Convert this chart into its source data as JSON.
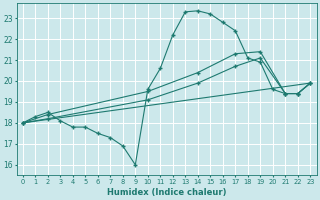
{
  "xlabel": "Humidex (Indice chaleur)",
  "bg_color": "#cce8eb",
  "grid_color": "#ffffff",
  "line_color": "#1e7a70",
  "xlim": [
    -0.5,
    23.5
  ],
  "ylim": [
    15.5,
    23.7
  ],
  "xticks": [
    0,
    1,
    2,
    3,
    4,
    5,
    6,
    7,
    8,
    9,
    10,
    11,
    12,
    13,
    14,
    15,
    16,
    17,
    18,
    19,
    20,
    21,
    22,
    23
  ],
  "yticks": [
    16,
    17,
    18,
    19,
    20,
    21,
    22,
    23
  ],
  "curve1_x": [
    0,
    1,
    2,
    3,
    4,
    5,
    6,
    7,
    8,
    9,
    10,
    11,
    12,
    13,
    14,
    15,
    16,
    17,
    18,
    19,
    20,
    21,
    22,
    23
  ],
  "curve1_y": [
    18.0,
    18.3,
    18.5,
    18.1,
    17.8,
    17.8,
    17.5,
    17.3,
    16.9,
    16.0,
    19.6,
    20.6,
    22.2,
    23.3,
    23.35,
    23.2,
    22.8,
    22.4,
    21.1,
    20.9,
    19.6,
    19.4,
    19.4,
    19.9
  ],
  "curve2_x": [
    0,
    2,
    10,
    14,
    17,
    19,
    21,
    22,
    23
  ],
  "curve2_y": [
    18.0,
    18.4,
    19.5,
    20.4,
    21.3,
    21.4,
    19.4,
    19.4,
    19.9
  ],
  "curve3_x": [
    0,
    2,
    10,
    14,
    17,
    19,
    21,
    22,
    23
  ],
  "curve3_y": [
    18.0,
    18.2,
    19.1,
    19.9,
    20.7,
    21.1,
    19.4,
    19.4,
    19.9
  ],
  "curve4_x": [
    0,
    23
  ],
  "curve4_y": [
    18.0,
    19.9
  ]
}
